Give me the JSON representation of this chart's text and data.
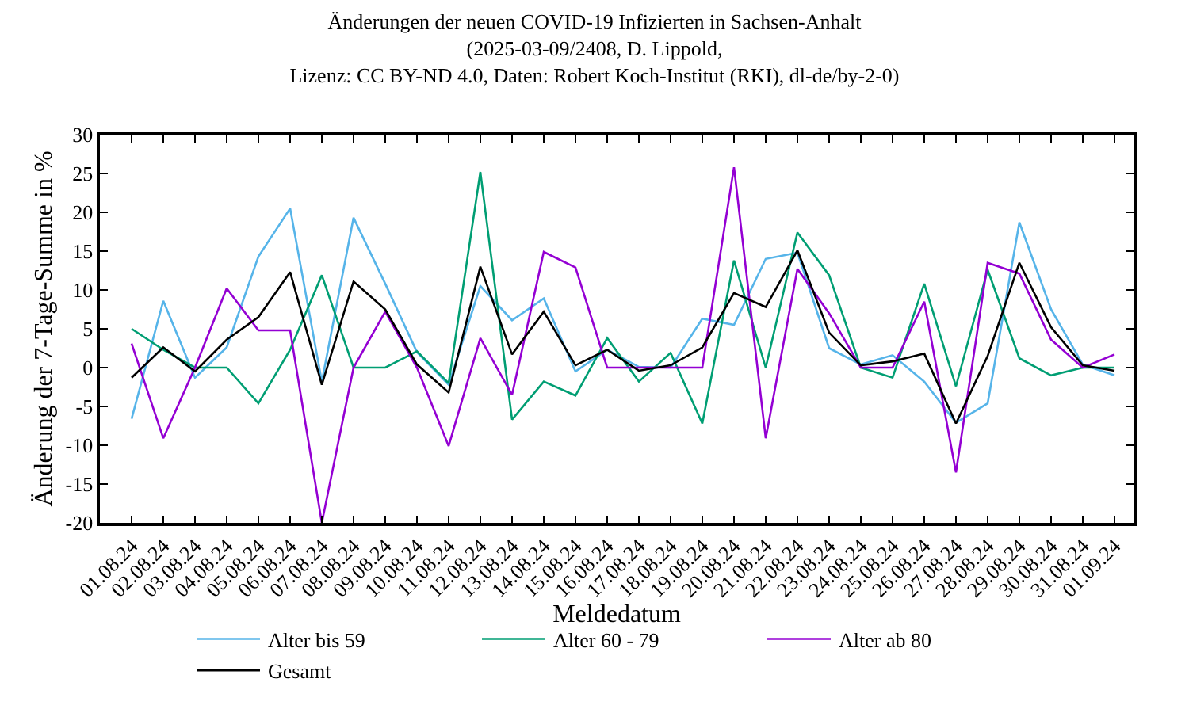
{
  "chart_data": {
    "type": "line",
    "title": "Änderungen der neuen COVID-19 Infizierten in Sachsen-Anhalt\n(2025-03-09/2408, D. Lippold,\nLizenz: CC BY-ND 4.0, Daten: Robert Koch-Institut (RKI), dl-de/by-2-0)",
    "xlabel": "Meldedatum",
    "ylabel": "Änderung der 7-Tage-Summe in %",
    "categories": [
      "01.08.24",
      "02.08.24",
      "03.08.24",
      "04.08.24",
      "05.08.24",
      "06.08.24",
      "07.08.24",
      "08.08.24",
      "09.08.24",
      "10.08.24",
      "11.08.24",
      "12.08.24",
      "13.08.24",
      "14.08.24",
      "15.08.24",
      "16.08.24",
      "17.08.24",
      "18.08.24",
      "19.08.24",
      "20.08.24",
      "21.08.24",
      "22.08.24",
      "23.08.24",
      "24.08.24",
      "25.08.24",
      "26.08.24",
      "27.08.24",
      "28.08.24",
      "29.08.24",
      "30.08.24",
      "31.08.24",
      "01.09.24"
    ],
    "series": [
      {
        "name": "Alter bis 59",
        "color": "#56b4e9",
        "values": [
          -6.6,
          8.6,
          -1.3,
          2.6,
          14.3,
          20.5,
          -1.8,
          19.3,
          10.8,
          2.0,
          -2.2,
          10.5,
          6.1,
          8.9,
          -0.5,
          2.3,
          0.1,
          0,
          6.3,
          5.5,
          14.0,
          14.8,
          2.5,
          0.4,
          1.6,
          -1.8,
          -7.1,
          -4.6,
          18.7,
          7.5,
          0.4,
          -1.0
        ]
      },
      {
        "name": "Alter 60 - 79",
        "color": "#009e73",
        "values": [
          5.0,
          2.3,
          0,
          0,
          -4.6,
          2.3,
          11.9,
          0,
          0,
          2.1,
          -2.0,
          25.2,
          -6.7,
          -1.8,
          -3.6,
          3.8,
          -1.8,
          1.9,
          -7.2,
          13.8,
          0,
          17.4,
          11.9,
          0,
          -1.3,
          10.8,
          -2.4,
          12.6,
          1.2,
          -1.0,
          0,
          0
        ]
      },
      {
        "name": "Alter ab 80",
        "color": "#9400d3",
        "values": [
          3.1,
          -9.1,
          0,
          10.2,
          4.8,
          4.8,
          -20,
          0,
          7.2,
          0,
          -10.1,
          3.8,
          -3.5,
          14.9,
          12.9,
          0,
          0,
          0,
          0,
          25.8,
          -9.1,
          12.7,
          7.0,
          0,
          0,
          8.5,
          -13.5,
          13.5,
          12.1,
          3.6,
          0,
          1.7
        ]
      },
      {
        "name": "Gesamt",
        "color": "#000000",
        "values": [
          -1.3,
          2.6,
          -0.5,
          3.6,
          6.5,
          12.3,
          -2.2,
          11.1,
          7.5,
          0.4,
          -3.2,
          13.0,
          1.7,
          7.2,
          0.3,
          2.3,
          -0.4,
          0.3,
          2.6,
          9.6,
          7.8,
          15.1,
          4.5,
          0.3,
          0.8,
          1.8,
          -7.2,
          1.5,
          13.5,
          5.2,
          0.3,
          -0.4
        ]
      }
    ],
    "ylim": [
      -20,
      30
    ],
    "yticks": [
      -20,
      -15,
      -10,
      -5,
      0,
      5,
      10,
      15,
      20,
      25,
      30
    ],
    "legend": "bottom",
    "marker": "none",
    "line_style": "solid"
  }
}
